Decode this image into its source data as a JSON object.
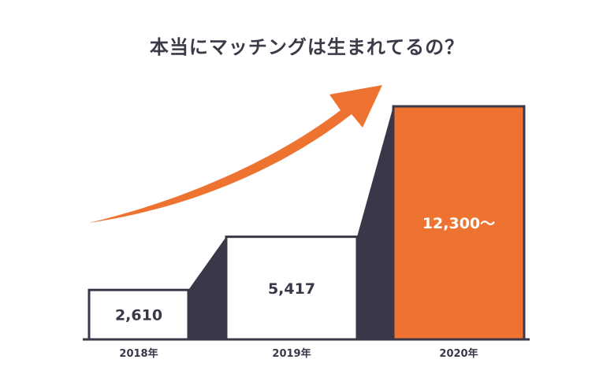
{
  "title": "本当にマッチングは生まれてるの？",
  "colors": {
    "accent": "#ef7330",
    "dark": "#3a3848",
    "outline": "#3a3848",
    "bar_fill": "#ffffff",
    "highlight_text": "#ffffff"
  },
  "chart_data": {
    "type": "bar",
    "title": "本当にマッチングは生まれてるの？",
    "categories": [
      "2018年",
      "2019年",
      "2020年"
    ],
    "values": [
      2610,
      5417,
      12300
    ],
    "value_labels": [
      "2,610",
      "5,417",
      "12,300～"
    ],
    "highlight_index": 2,
    "ylim": [
      0,
      12300
    ],
    "grid": false,
    "legend": "none",
    "decorations": [
      "upward-trend-arrow",
      "connector-bands-between-bars"
    ]
  }
}
